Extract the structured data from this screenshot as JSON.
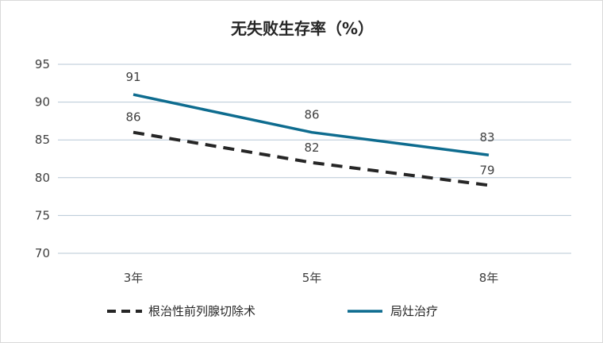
{
  "chart_data": {
    "type": "line",
    "title": "无失败生存率（%）",
    "categories": [
      "3年",
      "5年",
      "8年"
    ],
    "ylim": [
      70,
      95
    ],
    "yticks": [
      95,
      90,
      85,
      80,
      75,
      70
    ],
    "grid": true,
    "legend_position": "bottom",
    "series": [
      {
        "name": "根治性前列腺切除术",
        "values": [
          86,
          82,
          79
        ],
        "style": "dashed",
        "color": "#262626"
      },
      {
        "name": "局灶治疗",
        "values": [
          91,
          86,
          83
        ],
        "style": "solid",
        "color": "#0e6c8f"
      }
    ]
  }
}
